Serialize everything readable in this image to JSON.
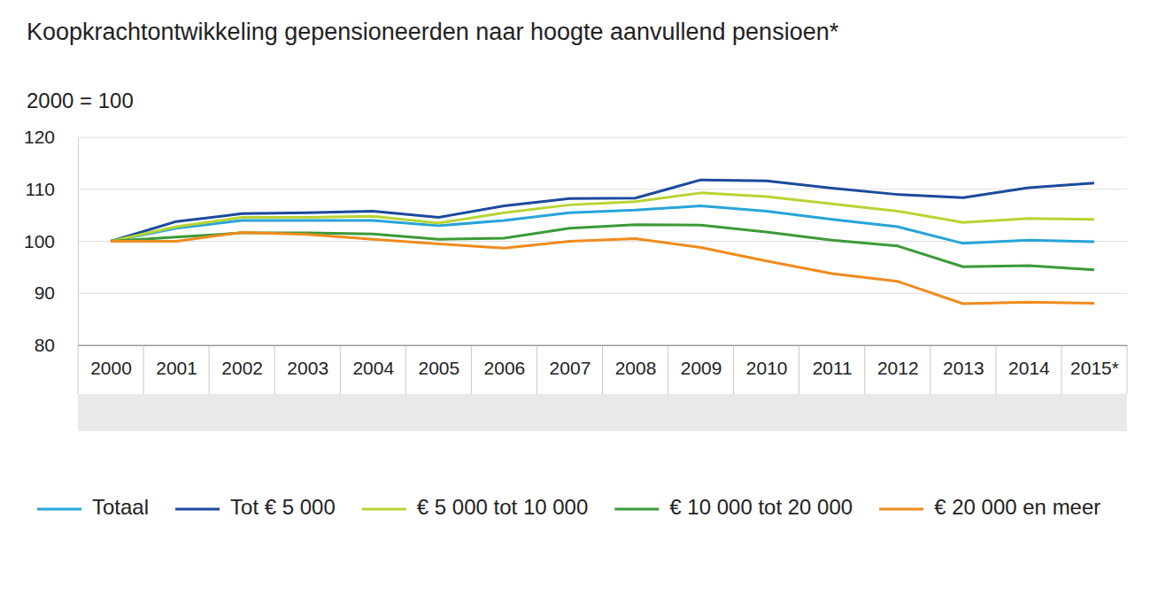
{
  "chart_data": {
    "type": "line",
    "title": "Koopkrachtontwikkeling gepensioneerden naar hoogte aanvullend pensioen*",
    "subtitle": "2000 = 100",
    "categories": [
      "2000",
      "2001",
      "2002",
      "2003",
      "2004",
      "2005",
      "2006",
      "2007",
      "2008",
      "2009",
      "2010",
      "2011",
      "2012",
      "2013",
      "2014",
      "2015*"
    ],
    "series": [
      {
        "name": "Totaal",
        "color": "#27a4d8",
        "values": [
          100,
          102.5,
          104,
          104,
          104,
          103,
          104,
          105.5,
          106,
          106.8,
          105.8,
          104.2,
          102.8,
          99.6,
          100.2,
          99.9
        ]
      },
      {
        "name": "Tot € 5 000",
        "color": "#1b4a9c",
        "values": [
          100,
          103.8,
          105.3,
          105.5,
          105.8,
          104.6,
          106.8,
          108.2,
          108.3,
          111.8,
          111.6,
          110.2,
          109,
          108.4,
          110.3,
          111.2
        ]
      },
      {
        "name": "€ 5 000 tot 10 000",
        "color": "#b7d433",
        "values": [
          100,
          102.8,
          104.6,
          104.6,
          104.8,
          103.5,
          105.5,
          107,
          107.6,
          109.3,
          108.6,
          107.2,
          105.8,
          103.6,
          104.4,
          104.2
        ]
      },
      {
        "name": "€ 10 000 tot 20 000",
        "color": "#3b9a38",
        "values": [
          100,
          100.8,
          101.6,
          101.6,
          101.4,
          100.4,
          100.6,
          102.5,
          103.2,
          103.1,
          101.8,
          100.2,
          99.1,
          95.1,
          95.3,
          94.5
        ]
      },
      {
        "name": "€ 20 000 en meer",
        "color": "#f08b1d",
        "values": [
          100,
          100,
          101.7,
          101.3,
          100.4,
          99.5,
          98.7,
          100,
          100.5,
          98.8,
          96.2,
          93.8,
          92.3,
          88,
          88.3,
          88.1
        ]
      }
    ],
    "ylim": [
      80,
      120
    ],
    "yticks": [
      80,
      90,
      100,
      110,
      120
    ],
    "grid": true,
    "legend": "bottom"
  }
}
